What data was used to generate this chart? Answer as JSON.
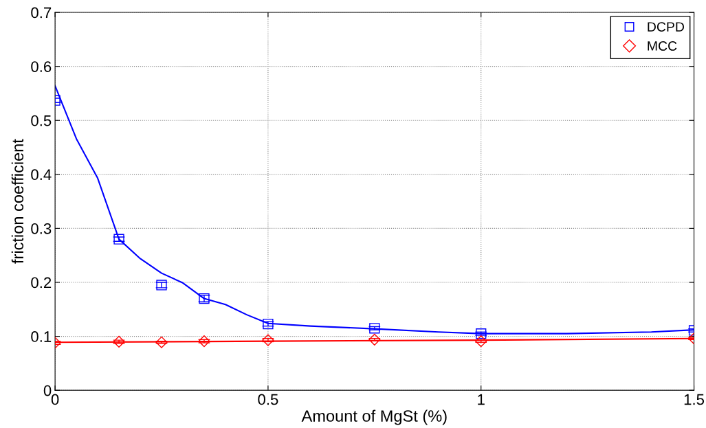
{
  "chart_data": {
    "type": "scatter",
    "xlabel": "Amount of MgSt (%)",
    "ylabel": "friction coefficient",
    "x": [
      0,
      0.15,
      0.25,
      0.35,
      0.5,
      0.75,
      1,
      1.5
    ],
    "series": [
      {
        "name": "DCPD",
        "color": "#0000ff",
        "marker": "square",
        "values": [
          0.537,
          0.28,
          0.195,
          0.17,
          0.123,
          0.115,
          0.105,
          0.111
        ],
        "errors": [
          0.004,
          0.004,
          0.005,
          0.006,
          0.004,
          0.003,
          0.003,
          0.003
        ]
      },
      {
        "name": "MCC",
        "color": "#ff0000",
        "marker": "diamond",
        "values": [
          0.088,
          0.09,
          0.089,
          0.091,
          0.093,
          0.094,
          0.091,
          0.096
        ],
        "errors": [
          0.003,
          0.003,
          0.002,
          0.003,
          0.003,
          0.002,
          0.002,
          0.002
        ]
      },
      {
        "type": "line",
        "color": "#0000ff",
        "marker": "none",
        "x": [
          0,
          0.05,
          0.1,
          0.15,
          0.2,
          0.25,
          0.3,
          0.35,
          0.4,
          0.45,
          0.5,
          0.6,
          0.75,
          0.9,
          1,
          1.2,
          1.4,
          1.5
        ],
        "values": [
          0.564,
          0.466,
          0.393,
          0.28,
          0.244,
          0.217,
          0.199,
          0.17,
          0.159,
          0.14,
          0.124,
          0.119,
          0.114,
          0.108,
          0.105,
          0.105,
          0.108,
          0.112
        ]
      },
      {
        "type": "line",
        "color": "#ff0000",
        "marker": "none",
        "x": [
          0,
          0.5,
          1,
          1.5
        ],
        "values": [
          0.089,
          0.091,
          0.093,
          0.096
        ]
      }
    ],
    "xlim": [
      0,
      1.5
    ],
    "xticks": [
      0,
      0.5,
      1,
      1.5
    ],
    "ylim": [
      0,
      0.7
    ],
    "yticks": [
      0,
      0.1,
      0.2,
      0.3,
      0.4,
      0.5,
      0.6,
      0.7
    ],
    "grid": true,
    "legend": "top right"
  }
}
